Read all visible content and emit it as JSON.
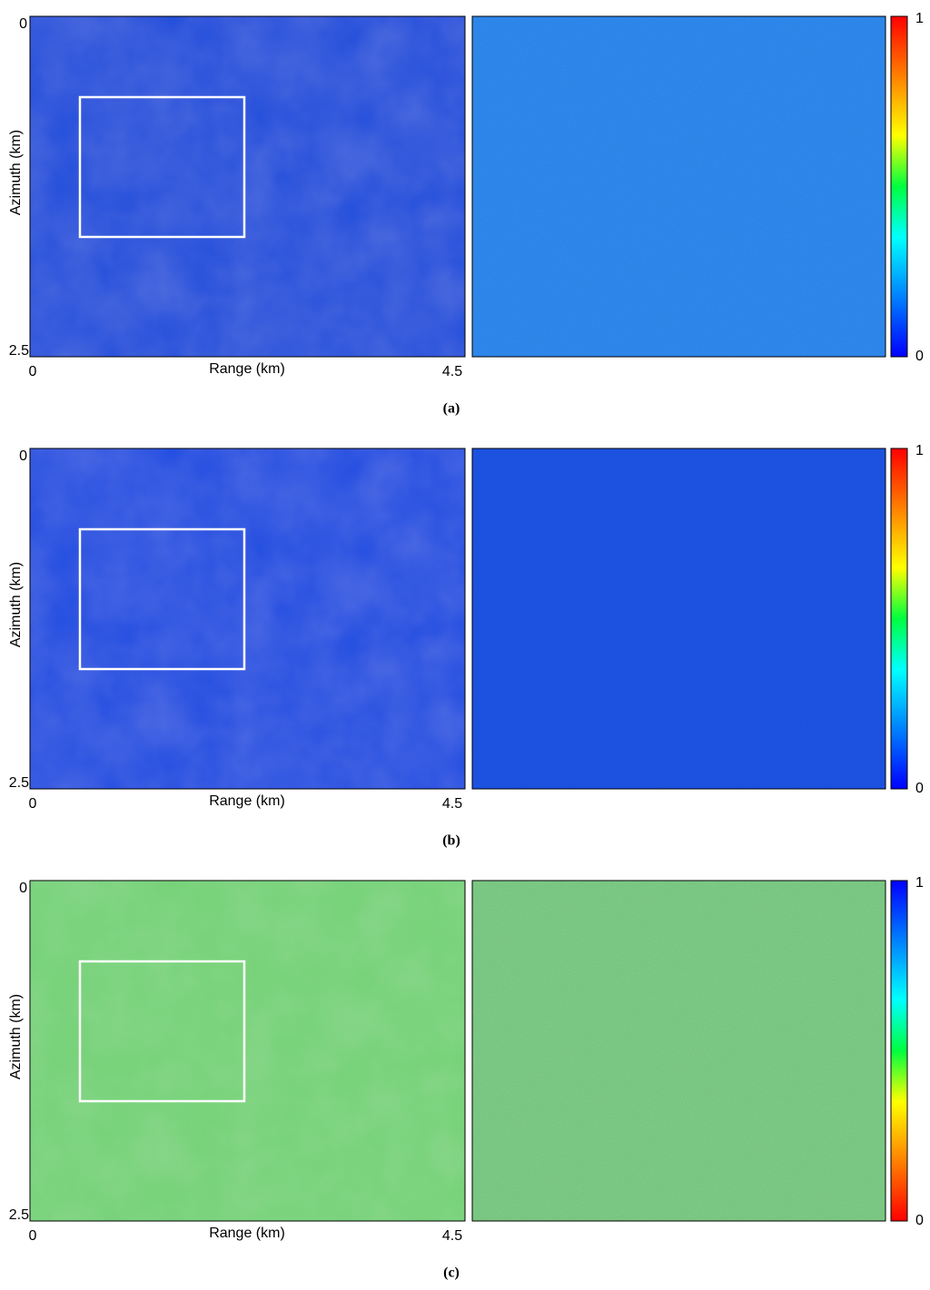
{
  "panels": [
    {
      "y_axis_label": "Azimuth (km)",
      "y_ticks": [
        0,
        2.5
      ],
      "x_axis_label": "Range (km)",
      "x_ticks": [
        0,
        4.5
      ],
      "colorbar_ticks": [
        1,
        0
      ],
      "colormap_reversed": false,
      "caption": "(a)"
    },
    {
      "y_axis_label": "Azimuth (km)",
      "y_ticks": [
        0,
        2.5
      ],
      "x_axis_label": "Range (km)",
      "x_ticks": [
        0,
        4.5
      ],
      "colorbar_ticks": [
        1,
        0
      ],
      "colormap_reversed": false,
      "caption": "(b)"
    },
    {
      "y_axis_label": "Azimuth (km)",
      "y_ticks": [
        0,
        2.5
      ],
      "x_axis_label": "Range (km)",
      "x_ticks": [
        0,
        4.5
      ],
      "colorbar_ticks": [
        1,
        0
      ],
      "colormap_reversed": true,
      "caption": "(c)"
    }
  ]
}
